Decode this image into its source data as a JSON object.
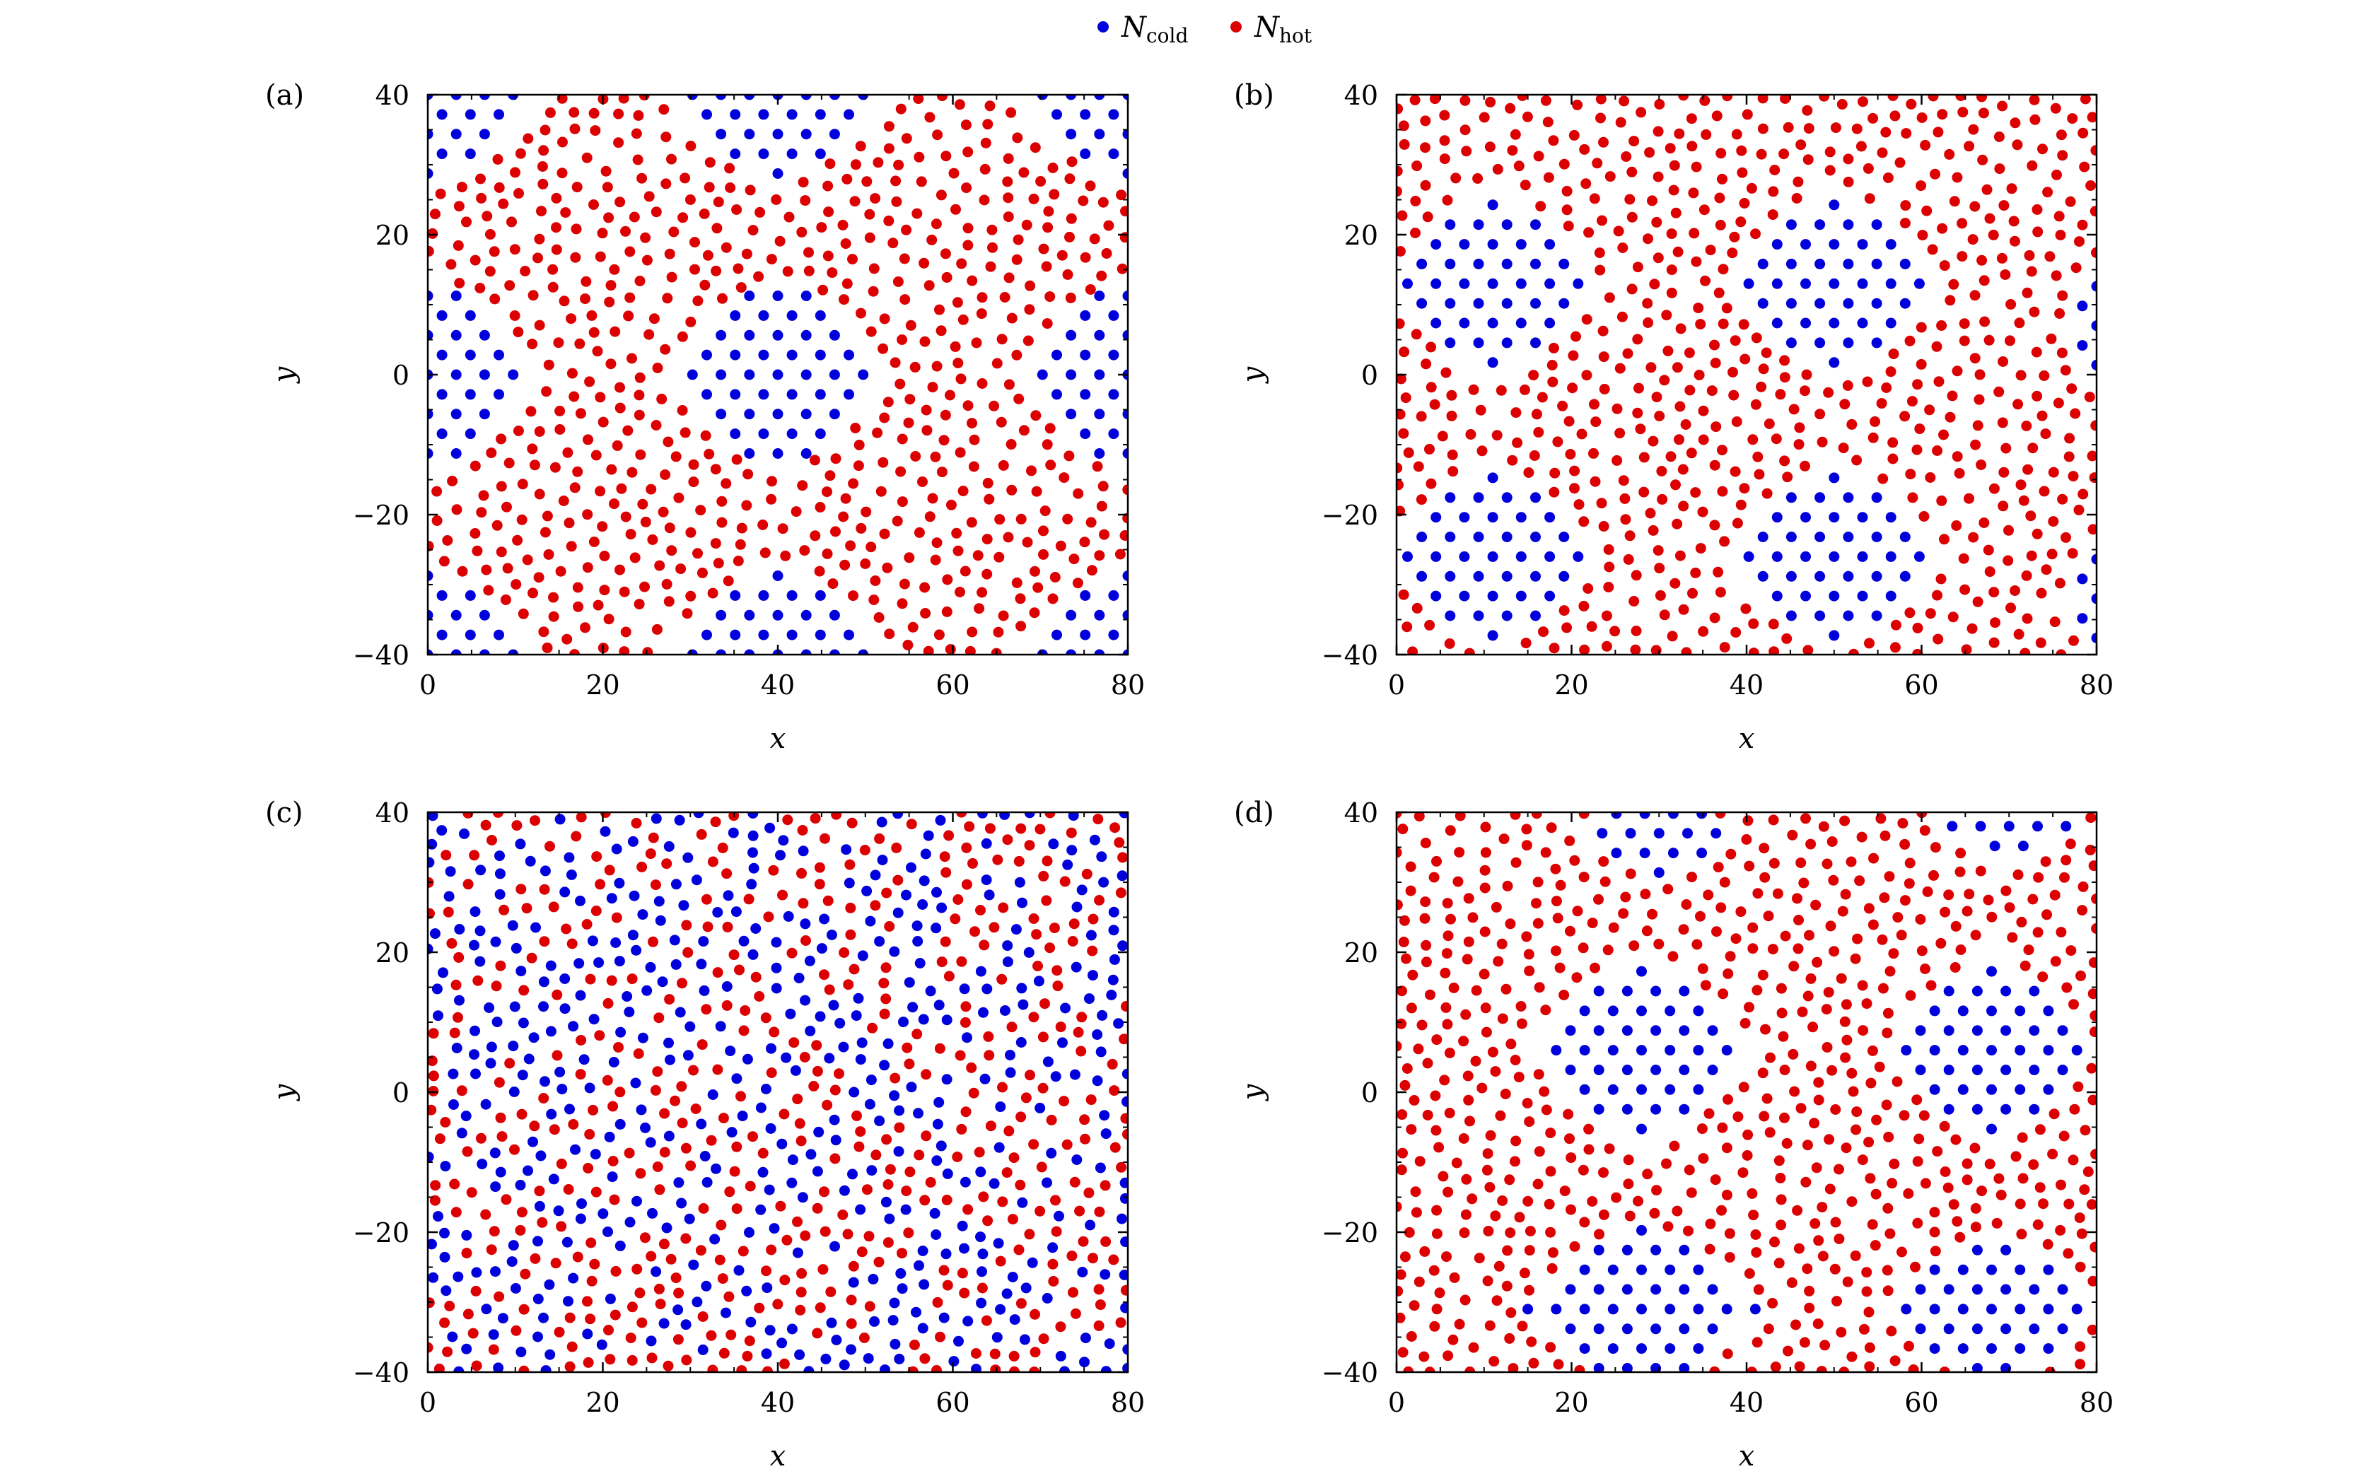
{
  "legend": {
    "position": "top-center",
    "entries": [
      {
        "symbol": "N",
        "subscript": "cold",
        "color": "#0000dd"
      },
      {
        "symbol": "N",
        "subscript": "hot",
        "color": "#dd0000"
      }
    ]
  },
  "chart_data": [
    {
      "type": "scatter",
      "panel_label": "(a)",
      "xlabel": "x",
      "ylabel": "y",
      "xlim": [
        0,
        80
      ],
      "ylim": [
        -40,
        40
      ],
      "xticks": [
        "0",
        "20",
        "40",
        "60",
        "80"
      ],
      "yticks": [
        "−40",
        "−20",
        "0",
        "20",
        "40"
      ],
      "grid": false,
      "series": [
        {
          "name": "N_cold",
          "color": "#0000dd",
          "domains": [
            [
              40,
              0,
              12.5,
              14
            ],
            [
              40,
              40,
              12.5,
              13
            ],
            [
              40,
              -40,
              12.5,
              13
            ],
            [
              0,
              0,
              12.5,
              14
            ],
            [
              80,
              0,
              12.5,
              14
            ],
            [
              0,
              40,
              12.5,
              13
            ],
            [
              80,
              40,
              12.5,
              13
            ],
            [
              0,
              -40,
              12.5,
              13
            ],
            [
              80,
              -40,
              12.5,
              13
            ]
          ]
        },
        {
          "name": "N_hot",
          "color": "#dd0000",
          "distribution": "disordered, filling the remaining area"
        }
      ]
    },
    {
      "type": "scatter",
      "panel_label": "(b)",
      "xlabel": "x",
      "ylabel": "y",
      "xlim": [
        0,
        80
      ],
      "ylim": [
        -40,
        40
      ],
      "xticks": [
        "0",
        "20",
        "40",
        "60",
        "80"
      ],
      "yticks": [
        "−40",
        "−20",
        "0",
        "20",
        "40"
      ],
      "grid": false,
      "series": [
        {
          "name": "N_cold",
          "color": "#0000dd",
          "domains": [
            [
              11,
              13,
              11.5,
              14
            ],
            [
              50,
              13,
              12,
              14
            ],
            [
              11,
              -26,
              11.5,
              14
            ],
            [
              50,
              -26,
              12,
              14
            ],
            [
              80,
              7,
              3,
              8
            ],
            [
              80,
              -32,
              3,
              8
            ]
          ]
        },
        {
          "name": "N_hot",
          "color": "#dd0000",
          "distribution": "disordered, filling the remaining area"
        }
      ]
    },
    {
      "type": "scatter",
      "panel_label": "(c)",
      "xlabel": "x",
      "ylabel": "y",
      "xlim": [
        0,
        80
      ],
      "ylim": [
        -40,
        40
      ],
      "xticks": [
        "0",
        "20",
        "40",
        "60",
        "80"
      ],
      "yticks": [
        "−40",
        "−20",
        "0",
        "20",
        "40"
      ],
      "grid": false,
      "series": [
        {
          "name": "N_cold",
          "color": "#0000dd",
          "distribution": "well mixed with N_hot, no ordered domains"
        },
        {
          "name": "N_hot",
          "color": "#dd0000",
          "distribution": "well mixed with N_cold"
        }
      ]
    },
    {
      "type": "scatter",
      "panel_label": "(d)",
      "xlabel": "x",
      "ylabel": "y",
      "xlim": [
        0,
        80
      ],
      "ylim": [
        -40,
        40
      ],
      "xticks": [
        "0",
        "20",
        "40",
        "60",
        "80"
      ],
      "yticks": [
        "−40",
        "−20",
        "0",
        "20",
        "40"
      ],
      "grid": false,
      "series": [
        {
          "name": "N_cold",
          "color": "#0000dd",
          "domains": [
            [
              28,
              6,
              12,
              14
            ],
            [
              68,
              6,
              11,
              14
            ],
            [
              28,
              -31,
              13,
              12
            ],
            [
              68,
              -31,
              12,
              11
            ],
            [
              30,
              37,
              8,
              6
            ],
            [
              70,
              38,
              8,
              5
            ]
          ]
        },
        {
          "name": "N_hot",
          "color": "#dd0000",
          "distribution": "disordered, filling the remaining area"
        }
      ]
    }
  ]
}
